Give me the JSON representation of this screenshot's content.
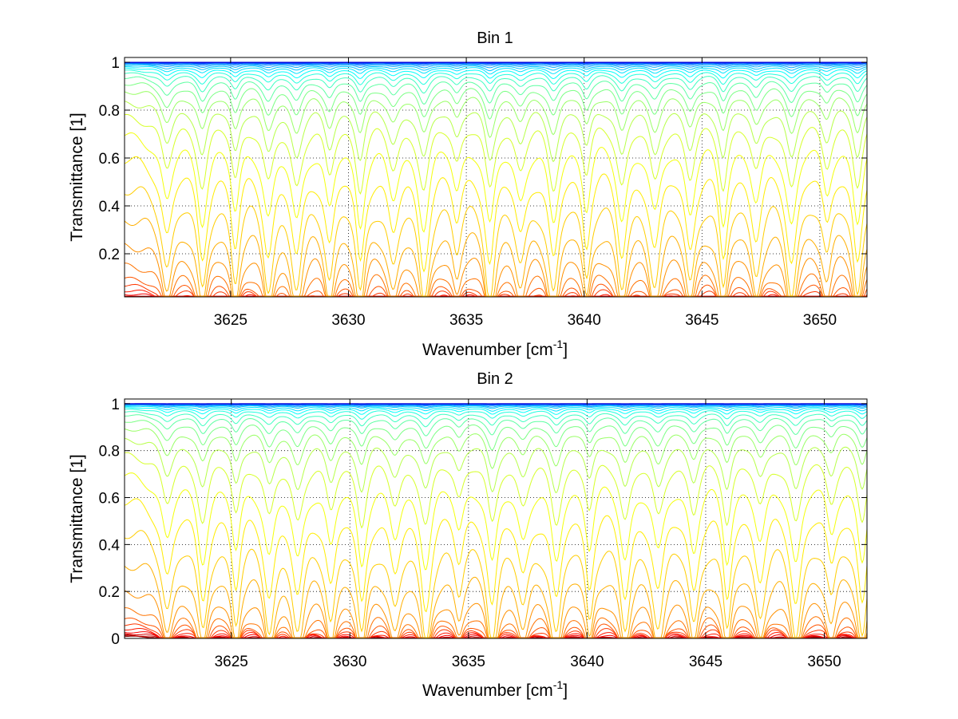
{
  "chart_data": [
    {
      "type": "line",
      "title": "Bin 1",
      "xlabel": "Wavenumber [cm",
      "xlabel_sup": "-1",
      "xlabel_end": "]",
      "ylabel": "Transmittance [1]",
      "xlim": [
        3620.5,
        3652
      ],
      "ylim": [
        0.02,
        1.02
      ],
      "x_ticks": [
        3625,
        3630,
        3635,
        3640,
        3645,
        3650
      ],
      "x_tick_labels": [
        "3625",
        "3630",
        "3635",
        "3640",
        "3645",
        "3650"
      ],
      "y_ticks": [
        0.2,
        0.4,
        0.6,
        0.8,
        1
      ],
      "y_tick_labels": [
        "0.2",
        "0.4",
        "0.6",
        "0.8",
        "1"
      ],
      "grid": true,
      "colormap": "jet",
      "series_count": 32,
      "absorption_line_centers": [
        3622.3,
        3623.8,
        3625.2,
        3626.6,
        3627.8,
        3629.2,
        3630.5,
        3631.9,
        3633.2,
        3634.6,
        3636.0,
        3637.3,
        3638.7,
        3640.1,
        3641.6,
        3643.0,
        3644.5,
        3645.9,
        3647.3,
        3648.8,
        3650.3,
        3651.6
      ],
      "series_baselines": [
        0.011,
        0.014,
        0.018,
        0.024,
        0.034,
        0.048,
        0.07,
        0.1,
        0.16,
        0.25,
        0.36,
        0.48,
        0.6,
        0.7,
        0.78,
        0.84,
        0.885,
        0.915,
        0.938,
        0.955,
        0.967,
        0.976,
        0.983,
        0.988,
        0.992,
        0.995,
        0.997,
        0.998,
        0.999,
        0.9995,
        0.9998,
        1.0
      ]
    },
    {
      "type": "line",
      "title": "Bin 2",
      "xlabel": "Wavenumber [cm",
      "xlabel_sup": "-1",
      "xlabel_end": "]",
      "ylabel": "Transmittance [1]",
      "xlim": [
        3620.5,
        3651.8
      ],
      "ylim": [
        0,
        1.02
      ],
      "x_ticks": [
        3625,
        3630,
        3635,
        3640,
        3645,
        3650
      ],
      "x_tick_labels": [
        "3625",
        "3630",
        "3635",
        "3640",
        "3645",
        "3650"
      ],
      "y_ticks": [
        0,
        0.2,
        0.4,
        0.6,
        0.8,
        1
      ],
      "y_tick_labels": [
        "0",
        "0.2",
        "0.4",
        "0.6",
        "0.8",
        "1"
      ],
      "grid": true,
      "colormap": "jet",
      "series_count": 32,
      "absorption_line_centers": [
        3622.3,
        3623.8,
        3625.2,
        3626.6,
        3627.8,
        3629.2,
        3630.5,
        3631.9,
        3633.2,
        3634.6,
        3636.0,
        3637.3,
        3638.7,
        3640.1,
        3641.6,
        3643.0,
        3644.5,
        3645.9,
        3647.3,
        3648.8,
        3650.3,
        3651.6
      ],
      "series_baselines": [
        0.009,
        0.012,
        0.016,
        0.022,
        0.03,
        0.042,
        0.06,
        0.085,
        0.13,
        0.21,
        0.33,
        0.46,
        0.59,
        0.7,
        0.79,
        0.855,
        0.9,
        0.93,
        0.952,
        0.966,
        0.977,
        0.984,
        0.989,
        0.993,
        0.995,
        0.997,
        0.998,
        0.999,
        0.9995,
        0.9998,
        0.9999,
        1.0
      ]
    }
  ]
}
